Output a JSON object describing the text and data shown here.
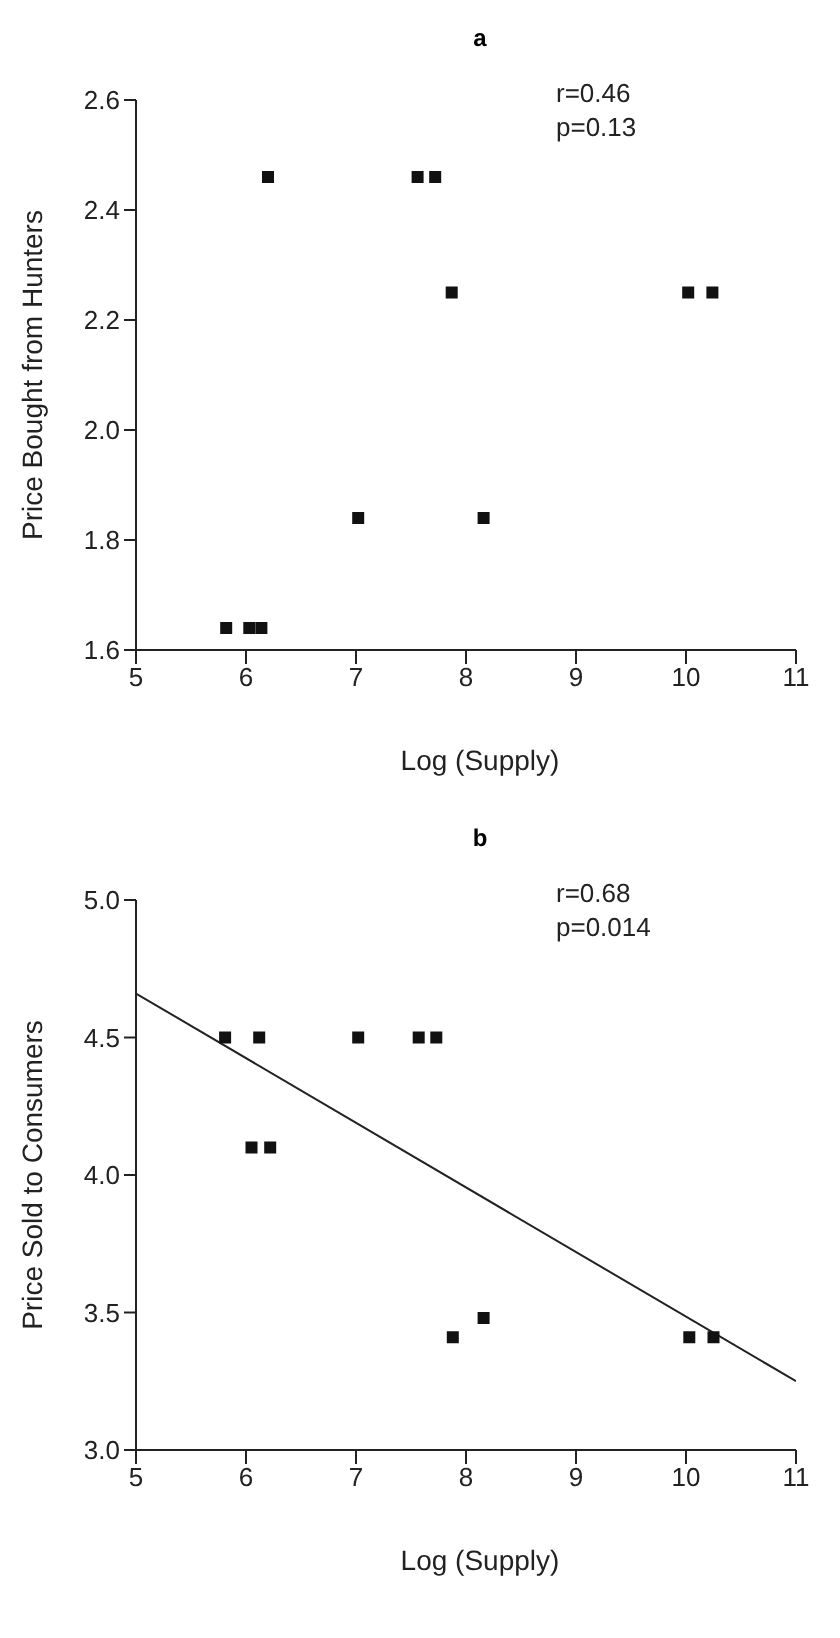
{
  "chart_data": [
    {
      "type": "scatter",
      "title": "a",
      "xlabel": "Log (Supply)",
      "ylabel": "Price Bought from Hunters",
      "annotations": [
        "r=0.46",
        "p=0.13"
      ],
      "xlim": [
        5,
        11
      ],
      "xticks": [
        5,
        6,
        7,
        8,
        9,
        10,
        11
      ],
      "ylim": [
        1.6,
        2.6
      ],
      "yticks": [
        1.6,
        1.8,
        {
          "value": 2,
          "label": "2.0"
        },
        2.2,
        2.4,
        2.6
      ],
      "series": [
        {
          "color": "#111111",
          "marker": "square",
          "x": [
            5.82,
            6.03,
            6.14,
            6.2,
            7.02,
            7.56,
            7.72,
            7.87,
            8.16,
            10.02,
            10.24
          ],
          "values": [
            1.64,
            1.64,
            1.64,
            2.46,
            1.84,
            2.46,
            2.46,
            2.25,
            1.84,
            2.25,
            2.25
          ]
        }
      ]
    },
    {
      "type": "scatter",
      "title": "b",
      "xlabel": "Log (Supply)",
      "ylabel": "Price Sold to Consumers",
      "annotations": [
        "r=0.68",
        "p=0.014"
      ],
      "xlim": [
        5,
        11
      ],
      "xticks": [
        5,
        6,
        7,
        8,
        9,
        10,
        11
      ],
      "ylim": [
        3.0,
        5.0
      ],
      "yticks": [
        {
          "value": 3,
          "label": "3.0"
        },
        3.5,
        {
          "value": 4,
          "label": "4.0"
        },
        4.5,
        {
          "value": 5,
          "label": "5.0"
        }
      ],
      "series": [
        {
          "color": "#111111",
          "marker": "square",
          "x": [
            5.81,
            6.12,
            7.02,
            7.57,
            7.73,
            6.05,
            6.22,
            7.88,
            8.16,
            10.03,
            10.25
          ],
          "values": [
            4.5,
            4.5,
            4.5,
            4.5,
            4.5,
            4.1,
            4.1,
            3.41,
            3.48,
            3.41,
            3.41
          ]
        },
        {
          "type": "line",
          "marker": "none",
          "color": "#222222",
          "x": [
            5,
            11
          ],
          "values": [
            4.66,
            3.25
          ]
        }
      ]
    }
  ]
}
